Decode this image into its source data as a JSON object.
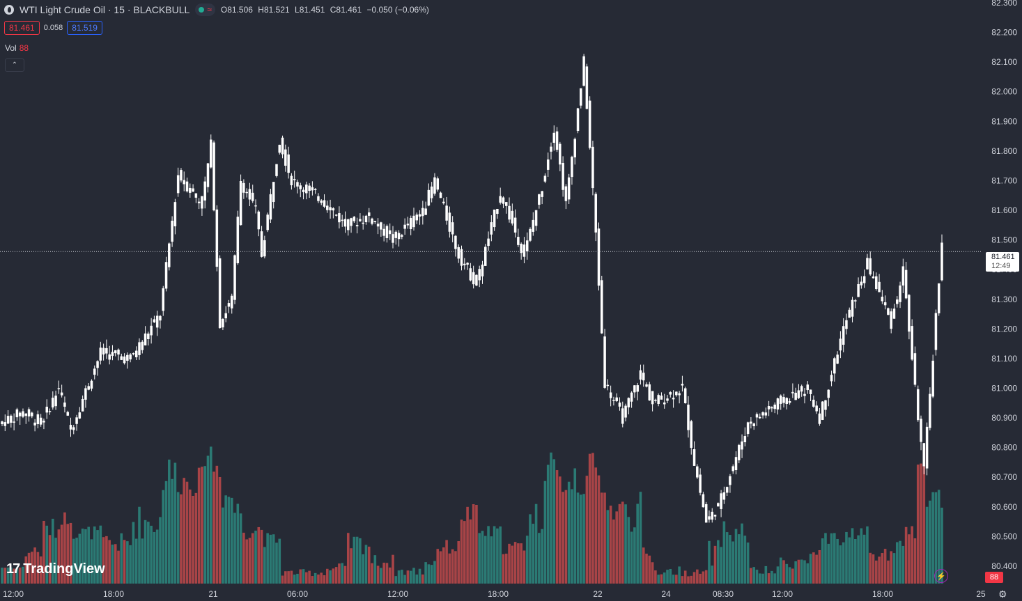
{
  "header": {
    "title": "WTI Light Crude Oil · 15 · BLACKBULL",
    "ohlc": {
      "o_label": "O",
      "o": "81.506",
      "h_label": "H",
      "h": "81.521",
      "l_label": "L",
      "l": "81.451",
      "c_label": "C",
      "c": "81.461",
      "change": "−0.050 (−0.06%)"
    }
  },
  "quote": {
    "bid": "81.461",
    "spread": "0.058",
    "ask": "81.519"
  },
  "volume_legend": {
    "label": "Vol",
    "value": "88"
  },
  "price_tag": {
    "price": "81.461",
    "countdown": "12:49"
  },
  "volume_tag": "88",
  "brand": "TradingView",
  "colors": {
    "background": "#262a35",
    "up": "#ffffff",
    "down_volume": "#a84447",
    "up_volume": "#2b7a74",
    "bid": "#f23645",
    "ask": "#2962ff"
  },
  "chart_data": {
    "type": "candlestick",
    "symbol": "WTI Light Crude Oil",
    "interval": "15",
    "ylim": [
      80.36,
      82.3
    ],
    "y_ticks": [
      "82.300",
      "82.200",
      "82.100",
      "82.000",
      "81.900",
      "81.800",
      "81.700",
      "81.600",
      "81.500",
      "81.400",
      "81.300",
      "81.200",
      "81.100",
      "81.000",
      "80.900",
      "80.800",
      "80.700",
      "80.600",
      "80.500",
      "80.400"
    ],
    "x_ticks": [
      "12:00",
      "18:00",
      "21",
      "06:00",
      "12:00",
      "18:00",
      "22",
      "24",
      "08:30",
      "12:00",
      "18:00",
      "25"
    ],
    "last_price": 81.461,
    "segments": [
      {
        "from": 80.88,
        "to": 80.92,
        "bars": 8,
        "vol": [
          0.1,
          0.12
        ]
      },
      {
        "from": 80.92,
        "to": 80.88,
        "bars": 6,
        "vol": [
          0.15,
          0.3
        ]
      },
      {
        "from": 80.88,
        "to": 81.0,
        "bars": 6,
        "vol": [
          0.3,
          0.45
        ]
      },
      {
        "from": 81.0,
        "to": 80.86,
        "bars": 4,
        "vol": [
          0.4,
          0.5
        ]
      },
      {
        "from": 80.86,
        "to": 81.12,
        "bars": 10,
        "vol": [
          0.3,
          0.4
        ]
      },
      {
        "from": 81.12,
        "to": 81.1,
        "bars": 10,
        "vol": [
          0.2,
          0.35
        ]
      },
      {
        "from": 81.1,
        "to": 81.25,
        "bars": 10,
        "vol": [
          0.3,
          0.55
        ]
      },
      {
        "from": 81.25,
        "to": 81.72,
        "bars": 6,
        "vol": [
          0.6,
          0.9
        ]
      },
      {
        "from": 81.72,
        "to": 81.62,
        "bars": 8,
        "vol": [
          0.6,
          0.8
        ]
      },
      {
        "from": 81.62,
        "to": 81.82,
        "bars": 3,
        "vol": [
          0.8,
          1.0
        ]
      },
      {
        "from": 81.82,
        "to": 81.22,
        "bars": 3,
        "vol": [
          0.7,
          0.9
        ]
      },
      {
        "from": 81.22,
        "to": 81.3,
        "bars": 4,
        "vol": [
          0.5,
          0.7
        ]
      },
      {
        "from": 81.3,
        "to": 81.7,
        "bars": 3,
        "vol": [
          0.4,
          0.6
        ]
      },
      {
        "from": 81.7,
        "to": 81.6,
        "bars": 5,
        "vol": [
          0.3,
          0.45
        ]
      },
      {
        "from": 81.6,
        "to": 81.45,
        "bars": 2,
        "vol": [
          0.3,
          0.45
        ]
      },
      {
        "from": 81.45,
        "to": 81.84,
        "bars": 6,
        "vol": [
          0.25,
          0.35
        ]
      },
      {
        "from": 81.84,
        "to": 81.7,
        "bars": 4,
        "vol": [
          0.05,
          0.1
        ]
      },
      {
        "from": 81.7,
        "to": 81.64,
        "bars": 10,
        "vol": [
          0.05,
          0.1
        ]
      },
      {
        "from": 81.64,
        "to": 81.55,
        "bars": 8,
        "vol": [
          0.05,
          0.15
        ]
      },
      {
        "from": 81.55,
        "to": 81.58,
        "bars": 8,
        "vol": [
          0.2,
          0.35
        ]
      },
      {
        "from": 81.58,
        "to": 81.5,
        "bars": 8,
        "vol": [
          0.1,
          0.2
        ]
      },
      {
        "from": 81.5,
        "to": 81.6,
        "bars": 10,
        "vol": [
          0.05,
          0.12
        ]
      },
      {
        "from": 81.6,
        "to": 81.7,
        "bars": 4,
        "vol": [
          0.1,
          0.2
        ]
      },
      {
        "from": 81.7,
        "to": 81.45,
        "bars": 8,
        "vol": [
          0.2,
          0.3
        ]
      },
      {
        "from": 81.45,
        "to": 81.35,
        "bars": 6,
        "vol": [
          0.4,
          0.55
        ]
      },
      {
        "from": 81.35,
        "to": 81.66,
        "bars": 8,
        "vol": [
          0.3,
          0.4
        ]
      },
      {
        "from": 81.66,
        "to": 81.45,
        "bars": 8,
        "vol": [
          0.2,
          0.3
        ]
      },
      {
        "from": 81.45,
        "to": 81.68,
        "bars": 6,
        "vol": [
          0.3,
          0.6
        ]
      },
      {
        "from": 81.68,
        "to": 81.88,
        "bars": 4,
        "vol": [
          0.7,
          0.9
        ]
      },
      {
        "from": 81.88,
        "to": 81.62,
        "bars": 4,
        "vol": [
          0.6,
          0.8
        ]
      },
      {
        "from": 81.62,
        "to": 82.1,
        "bars": 6,
        "vol": [
          0.55,
          0.95
        ]
      },
      {
        "from": 82.1,
        "to": 81.52,
        "bars": 4,
        "vol": [
          0.7,
          0.9
        ]
      },
      {
        "from": 81.52,
        "to": 81.02,
        "bars": 3,
        "vol": [
          0.6,
          0.8
        ]
      },
      {
        "from": 81.02,
        "to": 80.9,
        "bars": 6,
        "vol": [
          0.4,
          0.6
        ]
      },
      {
        "from": 80.9,
        "to": 81.05,
        "bars": 6,
        "vol": [
          0.35,
          0.65
        ]
      },
      {
        "from": 81.05,
        "to": 80.95,
        "bars": 4,
        "vol": [
          0.1,
          0.25
        ]
      },
      {
        "from": 80.95,
        "to": 81.0,
        "bars": 10,
        "vol": [
          0.05,
          0.12
        ]
      },
      {
        "from": 81.0,
        "to": 80.75,
        "bars": 4,
        "vol": [
          0.05,
          0.1
        ]
      },
      {
        "from": 80.75,
        "to": 80.55,
        "bars": 4,
        "vol": [
          0.05,
          0.1
        ]
      },
      {
        "from": 80.55,
        "to": 80.6,
        "bars": 4,
        "vol": [
          0.1,
          0.3
        ]
      },
      {
        "from": 80.6,
        "to": 80.88,
        "bars": 10,
        "vol": [
          0.25,
          0.45
        ]
      },
      {
        "from": 80.88,
        "to": 80.95,
        "bars": 10,
        "vol": [
          0.05,
          0.12
        ]
      },
      {
        "from": 80.95,
        "to": 81.0,
        "bars": 10,
        "vol": [
          0.1,
          0.2
        ]
      },
      {
        "from": 81.0,
        "to": 80.9,
        "bars": 4,
        "vol": [
          0.15,
          0.25
        ]
      },
      {
        "from": 80.9,
        "to": 81.2,
        "bars": 8,
        "vol": [
          0.2,
          0.35
        ]
      },
      {
        "from": 81.2,
        "to": 81.42,
        "bars": 8,
        "vol": [
          0.3,
          0.4
        ]
      },
      {
        "from": 81.42,
        "to": 81.22,
        "bars": 8,
        "vol": [
          0.15,
          0.25
        ]
      },
      {
        "from": 81.22,
        "to": 81.4,
        "bars": 4,
        "vol": [
          0.15,
          0.3
        ]
      },
      {
        "from": 81.4,
        "to": 81.0,
        "bars": 4,
        "vol": [
          0.3,
          0.4
        ]
      },
      {
        "from": 81.0,
        "to": 80.72,
        "bars": 3,
        "vol": [
          0.8,
          1.0
        ]
      },
      {
        "from": 80.72,
        "to": 81.5,
        "bars": 6,
        "vol": [
          0.5,
          0.7
        ]
      }
    ]
  }
}
